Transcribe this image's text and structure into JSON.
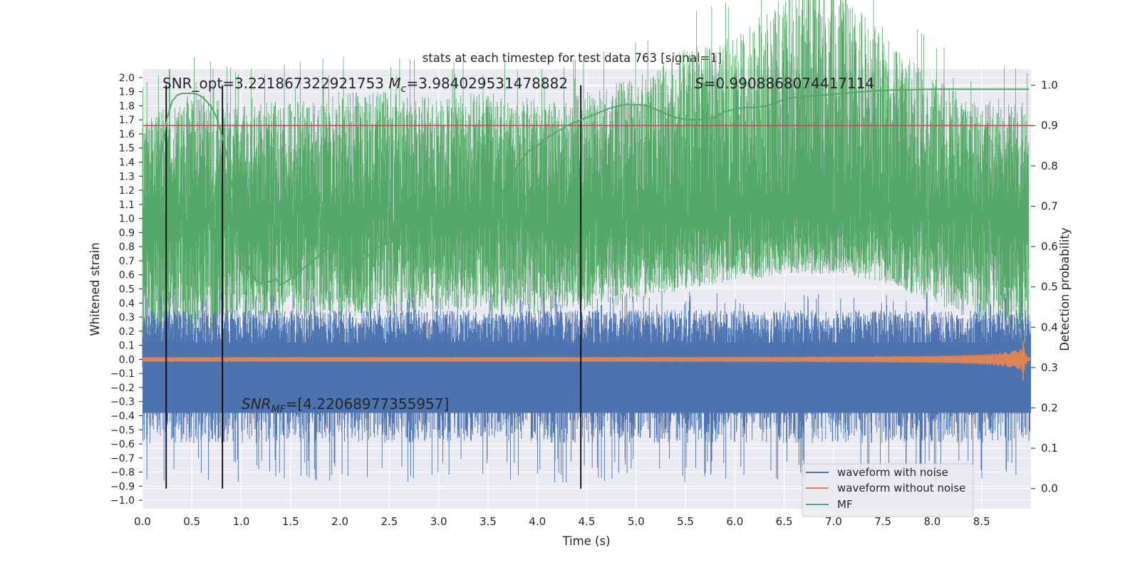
{
  "chart_data": {
    "type": "line",
    "title": "stats at each timestep for test data 763 [signal=1]",
    "xlabel": "Time (s)",
    "ylabel_left": "Whitened strain",
    "ylabel_right": "Detection probability",
    "xlim": [
      0.0,
      9.0
    ],
    "ylim_left": [
      -1.06,
      2.06
    ],
    "ylim_right": [
      -0.05,
      1.04
    ],
    "x_ticks": [
      "0.0",
      "0.5",
      "1.0",
      "1.5",
      "2.0",
      "2.5",
      "3.0",
      "3.5",
      "4.0",
      "4.5",
      "5.0",
      "5.5",
      "6.0",
      "6.5",
      "7.0",
      "7.5",
      "8.0",
      "8.5"
    ],
    "y_left_ticks": [
      "2.0",
      "1.9",
      "1.8",
      "1.7",
      "1.6",
      "1.5",
      "1.4",
      "1.3",
      "1.2",
      "1.1",
      "1.0",
      "0.9",
      "0.8",
      "0.7",
      "0.6",
      "0.5",
      "0.4",
      "0.3",
      "0.2",
      "0.1",
      "0.0",
      "−0.1",
      "−0.2",
      "−0.3",
      "−0.4",
      "−0.5",
      "−0.6",
      "−0.7",
      "−0.8",
      "−0.9",
      "−1.0"
    ],
    "y_right_ticks": [
      "1.0",
      "0.9",
      "0.8",
      "0.7",
      "0.6",
      "0.5",
      "0.4",
      "0.3",
      "0.2",
      "0.1",
      "0.0"
    ],
    "grid": true,
    "legend_position": "lower-right",
    "legend": [
      "waveform with noise",
      "waveform without noise",
      "MF"
    ],
    "colors": {
      "noisy": "#4c72b0",
      "clean": "#dd8452",
      "mf": "#55a868",
      "threshold": "#c44e52",
      "vline": "#000000",
      "plot_bg": "#eaeaf2",
      "grid": "#ffffff"
    },
    "threshold": 0.9,
    "vlines": [
      0.24,
      0.81,
      4.44
    ],
    "annotations": {
      "snr_opt": "SNR_opt=3.221867322921753 ",
      "mc_symbol": "M",
      "mc_sub": "c",
      "mc_value": "=3.984029531478882",
      "s_symbol": "S",
      "s_value": "=0.9908868074417114",
      "snr_mf_symbol": "SNR",
      "snr_mf_sub": "MF",
      "snr_mf_value": "=[4.22068977355957]"
    },
    "detection_probability": {
      "x": [
        0.0,
        0.05,
        0.1,
        0.15,
        0.2,
        0.25,
        0.3,
        0.35,
        0.4,
        0.45,
        0.5,
        0.55,
        0.6,
        0.65,
        0.7,
        0.75,
        0.8,
        0.85,
        0.9,
        0.95,
        1.0,
        1.05,
        1.1,
        1.15,
        1.2,
        1.25,
        1.3,
        1.35,
        1.4,
        1.5,
        1.6,
        1.7,
        1.8,
        1.9,
        2.0,
        2.1,
        2.2,
        2.3,
        2.4,
        2.5,
        2.6,
        2.7,
        2.8,
        2.9,
        3.0,
        3.1,
        3.2,
        3.3,
        3.4,
        3.5,
        3.6,
        3.7,
        3.8,
        3.9,
        4.0,
        4.1,
        4.2,
        4.3,
        4.4,
        4.5,
        4.6,
        4.7,
        4.8,
        4.9,
        5.0,
        5.1,
        5.2,
        5.3,
        5.4,
        5.5,
        5.6,
        5.7,
        5.8,
        5.9,
        6.0,
        6.1,
        6.2,
        6.3,
        6.4,
        6.5,
        6.6,
        6.7,
        6.8,
        6.9,
        7.0,
        7.2,
        7.4,
        7.6,
        7.8,
        8.0,
        8.2,
        8.4,
        8.6,
        8.8,
        8.98
      ],
      "values": [
        0.595,
        0.61,
        0.66,
        0.74,
        0.84,
        0.92,
        0.96,
        0.975,
        0.98,
        0.98,
        0.98,
        0.978,
        0.972,
        0.96,
        0.945,
        0.92,
        0.88,
        0.83,
        0.76,
        0.69,
        0.62,
        0.57,
        0.535,
        0.515,
        0.51,
        0.51,
        0.515,
        0.52,
        0.505,
        0.52,
        0.54,
        0.56,
        0.58,
        0.6,
        0.59,
        0.57,
        0.56,
        0.58,
        0.6,
        0.61,
        0.635,
        0.665,
        0.685,
        0.685,
        0.665,
        0.635,
        0.62,
        0.625,
        0.645,
        0.67,
        0.71,
        0.76,
        0.8,
        0.835,
        0.85,
        0.87,
        0.885,
        0.9,
        0.91,
        0.92,
        0.93,
        0.94,
        0.948,
        0.952,
        0.952,
        0.95,
        0.94,
        0.93,
        0.92,
        0.915,
        0.915,
        0.915,
        0.92,
        0.935,
        0.94,
        0.945,
        0.945,
        0.948,
        0.955,
        0.965,
        0.97,
        0.972,
        0.974,
        0.975,
        0.978,
        0.982,
        0.986,
        0.988,
        0.989,
        0.99,
        0.99,
        0.99,
        0.99,
        0.99,
        0.99
      ]
    },
    "mf_noise": {
      "description_x": [
        0.0,
        0.5,
        1.0,
        1.5,
        2.0,
        2.5,
        3.0,
        3.5,
        4.0,
        4.5,
        5.0,
        5.5,
        6.0,
        6.5,
        7.0,
        7.5,
        8.0,
        8.5,
        8.98
      ],
      "upper_envelope": [
        1.7,
        1.9,
        1.8,
        1.85,
        1.9,
        1.9,
        1.85,
        1.9,
        1.8,
        1.9,
        2.0,
        2.2,
        2.3,
        2.6,
        2.7,
        2.3,
        2.0,
        1.85,
        1.8
      ],
      "lower_envelope": [
        0.1,
        0.15,
        0.25,
        0.3,
        0.3,
        0.3,
        0.35,
        0.35,
        0.3,
        0.35,
        0.4,
        0.5,
        0.55,
        0.6,
        0.6,
        0.55,
        0.4,
        0.25,
        0.2
      ]
    },
    "noisy_waveform": {
      "upper_envelope": 0.35,
      "lower_envelope": -0.7
    },
    "clean_waveform": {
      "amplitude_start": 0.015,
      "amplitude_end": 0.09,
      "merger_time": 8.92
    }
  }
}
